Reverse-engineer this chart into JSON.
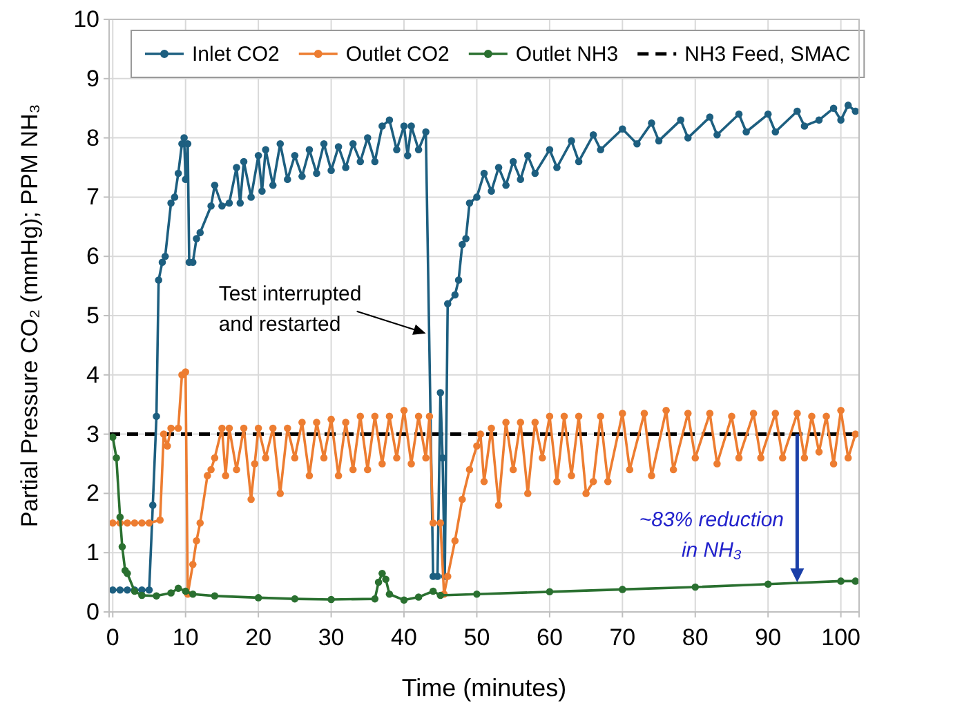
{
  "chart_data": {
    "type": "line",
    "xlabel": "Time (minutes)",
    "ylabel": "Partial Pressure CO₂ (mmHg); PPM NH₃",
    "xlim": [
      -0.5,
      102.5
    ],
    "ylim": [
      0,
      10
    ],
    "xticks": [
      0,
      10,
      20,
      30,
      40,
      50,
      60,
      70,
      80,
      90,
      100
    ],
    "yticks": [
      0,
      1,
      2,
      3,
      4,
      5,
      6,
      7,
      8,
      9,
      10
    ],
    "grid": true,
    "legend": "top",
    "marker": "circle",
    "line_style": "solid",
    "series": [
      {
        "name": "Inlet CO2",
        "color": "#1d5f80",
        "x": [
          0,
          1,
          2,
          3,
          4,
          5,
          5.5,
          6,
          6.3,
          6.8,
          7.2,
          8,
          8.5,
          9,
          9.5,
          9.8,
          10,
          10.3,
          10.5,
          11,
          11.5,
          12,
          13.5,
          14,
          15,
          16,
          17,
          17.5,
          18,
          19,
          20,
          20.5,
          21,
          22,
          23,
          24,
          25,
          26,
          27,
          28,
          29,
          30,
          31,
          32,
          33,
          34,
          35,
          36,
          37,
          38,
          39,
          40,
          40.5,
          41,
          42,
          43,
          44,
          44.6,
          45,
          45.3,
          45.6,
          46,
          47,
          47.5,
          48,
          48.5,
          49,
          50,
          51,
          52,
          53,
          54,
          55,
          56,
          57,
          58,
          60,
          61,
          63,
          64,
          66,
          67,
          70,
          72,
          74,
          75,
          78,
          79,
          82,
          83,
          86,
          87,
          90,
          91,
          94,
          95,
          97,
          99,
          100,
          101,
          102
        ],
        "values": [
          0.37,
          0.37,
          0.37,
          0.37,
          0.37,
          0.37,
          1.8,
          3.3,
          5.6,
          5.9,
          6.0,
          6.9,
          7.0,
          7.4,
          7.9,
          8.0,
          7.3,
          7.9,
          5.9,
          5.9,
          6.3,
          6.4,
          6.85,
          7.2,
          6.85,
          6.9,
          7.5,
          6.9,
          7.6,
          7.0,
          7.7,
          7.1,
          7.8,
          7.2,
          7.9,
          7.3,
          7.7,
          7.35,
          7.8,
          7.4,
          7.9,
          7.45,
          7.85,
          7.5,
          7.9,
          7.6,
          8.0,
          7.6,
          8.2,
          8.3,
          7.8,
          8.2,
          7.7,
          8.2,
          7.8,
          8.1,
          0.6,
          0.6,
          3.7,
          2.6,
          0.6,
          5.2,
          5.35,
          5.6,
          6.2,
          6.3,
          6.9,
          7.0,
          7.4,
          7.1,
          7.5,
          7.2,
          7.6,
          7.3,
          7.7,
          7.4,
          7.8,
          7.5,
          7.95,
          7.6,
          8.05,
          7.8,
          8.15,
          7.9,
          8.25,
          7.95,
          8.3,
          8.0,
          8.35,
          8.05,
          8.4,
          8.1,
          8.4,
          8.1,
          8.45,
          8.2,
          8.3,
          8.5,
          8.3,
          8.55,
          8.45
        ]
      },
      {
        "name": "Outlet CO2",
        "color": "#ed7d31",
        "x": [
          0,
          1,
          2,
          3,
          4,
          5,
          6.5,
          7,
          7.5,
          8,
          9,
          9.5,
          10,
          10.3,
          11,
          11.5,
          12,
          13,
          13.5,
          14,
          15,
          15.5,
          16,
          17,
          18,
          19,
          19.5,
          20,
          21,
          22,
          23,
          24,
          25,
          26,
          27,
          28,
          29,
          30,
          31,
          32,
          33,
          34,
          35,
          36,
          37,
          38,
          39,
          40,
          41,
          42,
          43,
          43.5,
          44,
          45,
          45.5,
          46,
          47,
          48,
          49,
          50,
          50.5,
          51,
          52,
          53,
          54,
          55,
          56,
          57,
          58,
          59,
          60,
          61,
          62,
          63,
          64,
          65,
          66,
          67,
          68,
          70,
          71,
          73,
          74,
          76,
          77,
          79,
          80,
          82,
          83,
          85,
          86,
          88,
          89,
          91,
          92,
          94,
          95,
          96,
          97,
          98,
          99,
          100,
          101,
          102
        ],
        "values": [
          1.5,
          1.5,
          1.5,
          1.5,
          1.5,
          1.5,
          1.55,
          3.0,
          2.8,
          3.1,
          3.1,
          4.0,
          4.05,
          0.3,
          0.8,
          1.2,
          1.5,
          2.3,
          2.4,
          2.6,
          3.1,
          2.3,
          3.1,
          2.4,
          3.1,
          1.9,
          2.5,
          3.1,
          2.6,
          3.1,
          2.0,
          3.1,
          2.6,
          3.2,
          2.3,
          3.2,
          2.6,
          3.25,
          2.3,
          3.2,
          2.4,
          3.3,
          2.4,
          3.3,
          2.5,
          3.3,
          2.6,
          3.4,
          2.5,
          3.3,
          2.6,
          3.3,
          1.5,
          1.5,
          0.3,
          0.6,
          1.2,
          1.9,
          2.4,
          2.8,
          3.0,
          2.2,
          3.1,
          1.8,
          3.2,
          2.4,
          3.2,
          2.0,
          3.2,
          2.6,
          3.3,
          2.2,
          3.3,
          2.3,
          3.3,
          2.0,
          2.2,
          3.3,
          2.2,
          3.35,
          2.4,
          3.35,
          2.3,
          3.4,
          2.4,
          3.35,
          2.6,
          3.35,
          2.5,
          3.3,
          2.6,
          3.35,
          2.6,
          3.35,
          2.6,
          3.35,
          2.6,
          3.3,
          2.7,
          3.3,
          2.5,
          3.4,
          2.6,
          3.0
        ]
      },
      {
        "name": "Outlet NH3",
        "color": "#2a7030",
        "x": [
          0,
          0.5,
          1,
          1.3,
          1.7,
          2,
          3,
          4,
          6,
          8,
          9,
          10,
          11,
          14,
          20,
          25,
          30,
          36,
          36.5,
          37,
          37.5,
          38,
          40,
          42,
          44,
          45,
          50,
          60,
          70,
          80,
          90,
          100,
          102
        ],
        "values": [
          2.95,
          2.6,
          1.6,
          1.1,
          0.7,
          0.65,
          0.35,
          0.28,
          0.27,
          0.32,
          0.4,
          0.35,
          0.3,
          0.27,
          0.24,
          0.22,
          0.21,
          0.22,
          0.5,
          0.65,
          0.55,
          0.3,
          0.2,
          0.25,
          0.35,
          0.28,
          0.3,
          0.34,
          0.38,
          0.42,
          0.47,
          0.52,
          0.52
        ]
      }
    ],
    "ref_lines": [
      {
        "axis": "y",
        "value": 3,
        "label": "NH3 Feed, SMAC",
        "color": "#000000",
        "line_style": "dashed"
      }
    ],
    "annotations": [
      {
        "text": "Test interrupted\nand restarted",
        "x": 43,
        "y": 4.7
      },
      {
        "text": "~83% reduction\nin NH₃",
        "x": 94,
        "y": 0.5
      }
    ]
  }
}
